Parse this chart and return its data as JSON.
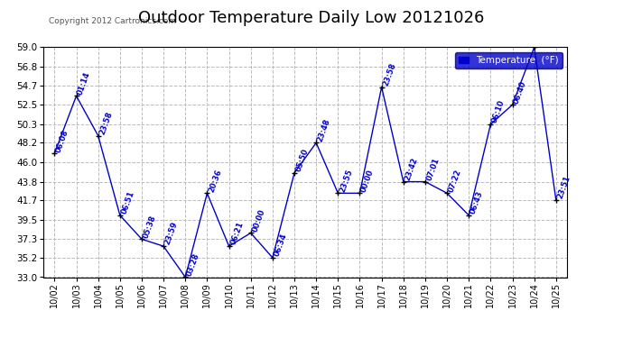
{
  "title": "Outdoor Temperature Daily Low 20121026",
  "copyright": "Copyright 2012 Cartronics.com",
  "ylabel": "Temperature  (°F)",
  "ylim": [
    33.0,
    59.0
  ],
  "yticks": [
    33.0,
    35.2,
    37.3,
    39.5,
    41.7,
    43.8,
    46.0,
    48.2,
    50.3,
    52.5,
    54.7,
    56.8,
    59.0
  ],
  "dates": [
    "10/02",
    "10/03",
    "10/04",
    "10/05",
    "10/06",
    "10/07",
    "10/08",
    "10/09",
    "10/10",
    "10/11",
    "10/12",
    "10/13",
    "10/14",
    "10/15",
    "10/16",
    "10/17",
    "10/18",
    "10/19",
    "10/20",
    "10/21",
    "10/22",
    "10/23",
    "10/24",
    "10/25"
  ],
  "temperatures": [
    47.0,
    53.5,
    49.0,
    40.0,
    37.3,
    36.5,
    33.0,
    42.5,
    36.5,
    38.0,
    35.2,
    44.8,
    48.2,
    42.5,
    42.5,
    54.5,
    43.8,
    43.8,
    42.5,
    40.0,
    50.3,
    52.5,
    59.0,
    41.7
  ],
  "times": [
    "06:08",
    "01:14",
    "23:58",
    "06:51",
    "05:38",
    "23:59",
    "03:28",
    "20:36",
    "06:21",
    "00:00",
    "06:34",
    "05:50",
    "23:48",
    "23:55",
    "00:00",
    "23:58",
    "23:42",
    "07:01",
    "07:22",
    "06:43",
    "06:10",
    "06:40",
    "",
    "23:51"
  ],
  "line_color": "#0000cc",
  "marker_color": "#000000",
  "bg_color": "#ffffff",
  "grid_color": "#bbbbbb",
  "title_fontsize": 13,
  "legend_bg": "#0000cc",
  "legend_fg": "#ffffff"
}
